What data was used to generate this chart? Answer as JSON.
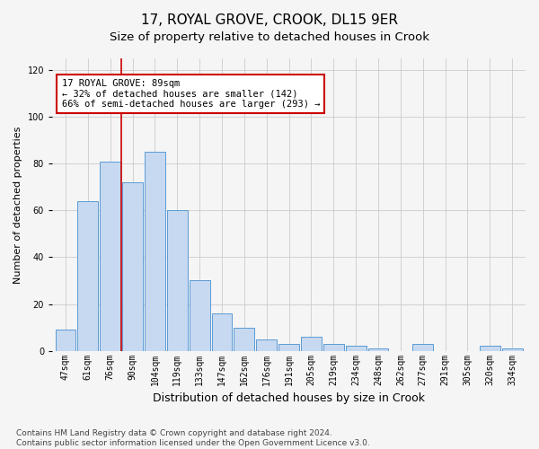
{
  "title": "17, ROYAL GROVE, CROOK, DL15 9ER",
  "subtitle": "Size of property relative to detached houses in Crook",
  "xlabel": "Distribution of detached houses by size in Crook",
  "ylabel": "Number of detached properties",
  "categories": [
    "47sqm",
    "61sqm",
    "76sqm",
    "90sqm",
    "104sqm",
    "119sqm",
    "133sqm",
    "147sqm",
    "162sqm",
    "176sqm",
    "191sqm",
    "205sqm",
    "219sqm",
    "234sqm",
    "248sqm",
    "262sqm",
    "277sqm",
    "291sqm",
    "305sqm",
    "320sqm",
    "334sqm"
  ],
  "values": [
    9,
    64,
    81,
    72,
    85,
    60,
    30,
    16,
    10,
    5,
    3,
    6,
    3,
    2,
    1,
    0,
    3,
    0,
    0,
    2,
    1
  ],
  "bar_color": "#c6d9f0",
  "bar_edge_color": "#5b9bd5",
  "vline_x_index": 3,
  "vline_color": "#cc0000",
  "annotation_text": "17 ROYAL GROVE: 89sqm\n← 32% of detached houses are smaller (142)\n66% of semi-detached houses are larger (293) →",
  "annotation_box_color": "#ffffff",
  "annotation_box_edge": "#cc0000",
  "ylim": [
    0,
    125
  ],
  "yticks": [
    0,
    20,
    40,
    60,
    80,
    100,
    120
  ],
  "footer": "Contains HM Land Registry data © Crown copyright and database right 2024.\nContains public sector information licensed under the Open Government Licence v3.0.",
  "bg_color": "#f5f5f5",
  "grid_color": "#cccccc",
  "title_fontsize": 11,
  "subtitle_fontsize": 9.5,
  "xlabel_fontsize": 9,
  "ylabel_fontsize": 8,
  "tick_fontsize": 7,
  "footer_fontsize": 6.5,
  "annotation_fontsize": 7.5
}
